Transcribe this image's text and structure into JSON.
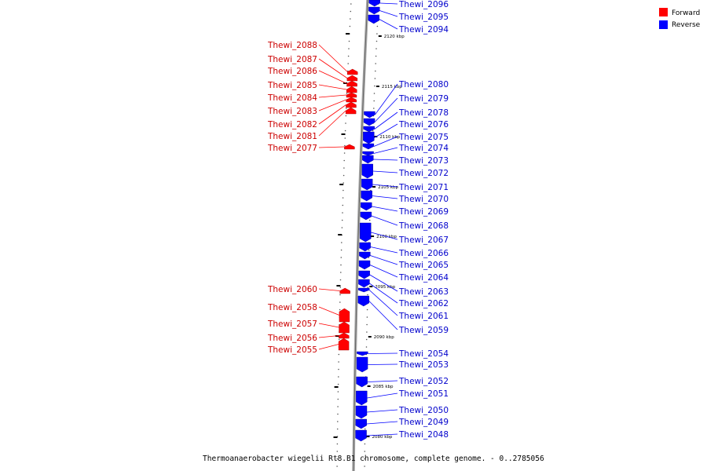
{
  "caption": "Thermoanaerobacter wiegelii Rt8.B1 chromosome, complete genome. - 0..2785056",
  "legend": [
    {
      "label": "Forward",
      "color": "#ff0000"
    },
    {
      "label": "Reverse",
      "color": "#0000ff"
    }
  ],
  "colors": {
    "forward": "#ff0000",
    "reverse": "#0000ff",
    "forward_text": "#cc0000",
    "reverse_text": "#0000cc",
    "backbone": "#aaaaaa"
  },
  "ticks": [
    {
      "label": "2120 kbp",
      "kbp": 2120
    },
    {
      "label": "2115 kbp",
      "kbp": 2115
    },
    {
      "label": "2110 kbp",
      "kbp": 2110
    },
    {
      "label": "2105 kbp",
      "kbp": 2105
    },
    {
      "label": "2100 kbp",
      "kbp": 2100
    },
    {
      "label": "2095 kbp",
      "kbp": 2095
    },
    {
      "label": "2090 kbp",
      "kbp": 2090
    },
    {
      "label": "2085 kbp",
      "kbp": 2085
    },
    {
      "label": "2080 kbp",
      "kbp": 2080
    }
  ],
  "forward_genes": [
    "Thewi_2088",
    "Thewi_2087",
    "Thewi_2086",
    "Thewi_2085",
    "Thewi_2084",
    "Thewi_2083",
    "Thewi_2082",
    "Thewi_2081",
    "Thewi_2077",
    "Thewi_2060",
    "Thewi_2058",
    "Thewi_2057",
    "Thewi_2056",
    "Thewi_2055"
  ],
  "reverse_genes": [
    "Thewi_2096",
    "Thewi_2095",
    "Thewi_2094",
    "Thewi_2080",
    "Thewi_2079",
    "Thewi_2078",
    "Thewi_2076",
    "Thewi_2075",
    "Thewi_2074",
    "Thewi_2073",
    "Thewi_2072",
    "Thewi_2071",
    "Thewi_2070",
    "Thewi_2069",
    "Thewi_2068",
    "Thewi_2067",
    "Thewi_2066",
    "Thewi_2065",
    "Thewi_2064",
    "Thewi_2063",
    "Thewi_2062",
    "Thewi_2061",
    "Thewi_2059",
    "Thewi_2054",
    "Thewi_2053",
    "Thewi_2052",
    "Thewi_2051",
    "Thewi_2050",
    "Thewi_2049",
    "Thewi_2048"
  ]
}
